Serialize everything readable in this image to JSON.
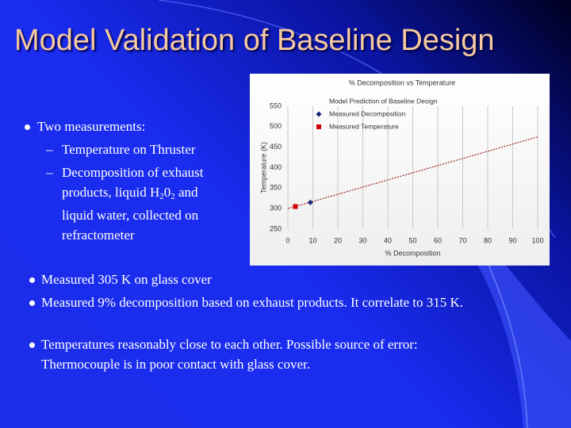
{
  "title": "Model Validation of Baseline Design",
  "bullets": [
    {
      "text": "Two measurements:",
      "sub_bullets": [
        {
          "text": "Temperature on Thruster"
        },
        {
          "segments": [
            {
              "text": "Decomposition of exhaust products, liquid H"
            },
            {
              "sub": "2"
            },
            {
              "text": "0"
            },
            {
              "sub": "2"
            },
            {
              "text": " and liquid water, collected on refractometer"
            }
          ]
        }
      ]
    },
    {
      "text": "Measured 305 K on glass cover"
    },
    {
      "text": "Measured 9% decomposition based on exhaust products. It correlate to 315 K."
    },
    {
      "text": "Temperatures reasonably close to each other. Possible source of error: Thermocouple is in poor contact with glass cover."
    }
  ],
  "chart_data": {
    "type": "line",
    "title": "% Decomposition vs Temperature",
    "x_label": "% Decomposition",
    "y_label": "Temperature (K)",
    "xlim": [
      0,
      100
    ],
    "xticks": [
      0,
      10,
      20,
      30,
      40,
      50,
      60,
      70,
      80,
      90,
      100
    ],
    "ylim": [
      250,
      550
    ],
    "yticks": [
      250,
      300,
      350,
      400,
      450,
      500,
      550
    ],
    "grid": "x",
    "legend": "upper left",
    "series": [
      {
        "name": "Model Prediction of Baseline Design",
        "type": "line",
        "color": "#8b0000",
        "x": [
          0,
          100
        ],
        "values": [
          300,
          475
        ]
      },
      {
        "name": "Measured Decomposition",
        "type": "scatter",
        "marker": "diamond",
        "color": "#1a237e",
        "x": [
          9
        ],
        "values": [
          315
        ]
      },
      {
        "name": "Measured Temperature",
        "type": "scatter",
        "marker": "square",
        "color": "#d00000",
        "x": [
          3
        ],
        "values": [
          305
        ]
      }
    ]
  }
}
